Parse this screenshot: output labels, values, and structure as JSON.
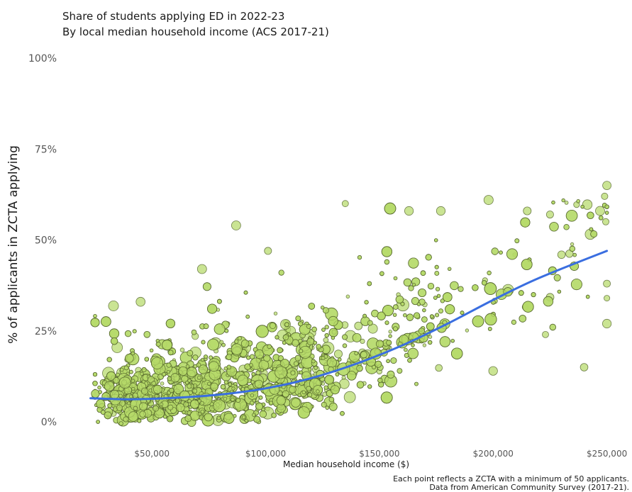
{
  "title": "Share of students applying ED in 2022-23",
  "subtitle": "By local median household income (ACS 2017-21)",
  "caption": {
    "line1": "Each point reflects a ZCTA with a minimum of 50 applicants.",
    "line2": "Data from American Community Survey (2017-21)."
  },
  "colors": {
    "point_fill": "#b5d96a",
    "point_stroke": "#4a5a24",
    "trend_line": "#3a6ee0",
    "text": "#1a1a1a",
    "tick_text": "#555555"
  },
  "chart_data": {
    "type": "scatter",
    "xlabel": "Median household income ($)",
    "ylabel": "% of applicants in ZCTA applying",
    "xlim": [
      20000,
      252000
    ],
    "ylim": [
      0,
      100
    ],
    "x_ticks": [
      50000,
      100000,
      150000,
      200000,
      250000
    ],
    "x_tick_labels": [
      "$50,000",
      "$100,000",
      "$150,000",
      "$200,000",
      "$250,000"
    ],
    "y_ticks": [
      0,
      25,
      50,
      75,
      100
    ],
    "y_tick_labels": [
      "0%",
      "25%",
      "50%",
      "75%",
      "100%"
    ],
    "grid": false,
    "point_size_meaning": "number of applicants",
    "trend": {
      "type": "smooth",
      "x": [
        23000,
        40000,
        60000,
        80000,
        100000,
        120000,
        140000,
        160000,
        180000,
        200000,
        220000,
        250000
      ],
      "y": [
        6.5,
        6.2,
        6.6,
        7.5,
        9.2,
        12.0,
        16.0,
        21.0,
        27.0,
        33.5,
        39.5,
        47.0
      ]
    },
    "highlighted_points": [
      {
        "x": 250000,
        "y": 65
      },
      {
        "x": 249000,
        "y": 62
      },
      {
        "x": 249500,
        "y": 55
      },
      {
        "x": 247000,
        "y": 58
      },
      {
        "x": 250000,
        "y": 38
      },
      {
        "x": 250000,
        "y": 34
      },
      {
        "x": 250000,
        "y": 27
      },
      {
        "x": 198000,
        "y": 61
      },
      {
        "x": 215000,
        "y": 58
      },
      {
        "x": 225000,
        "y": 57
      },
      {
        "x": 177000,
        "y": 58
      },
      {
        "x": 163000,
        "y": 58
      },
      {
        "x": 135000,
        "y": 60
      },
      {
        "x": 87000,
        "y": 54
      },
      {
        "x": 240000,
        "y": 15
      },
      {
        "x": 200000,
        "y": 14
      },
      {
        "x": 223000,
        "y": 24
      },
      {
        "x": 45000,
        "y": 33
      },
      {
        "x": 72000,
        "y": 42
      },
      {
        "x": 101000,
        "y": 47
      }
    ]
  }
}
